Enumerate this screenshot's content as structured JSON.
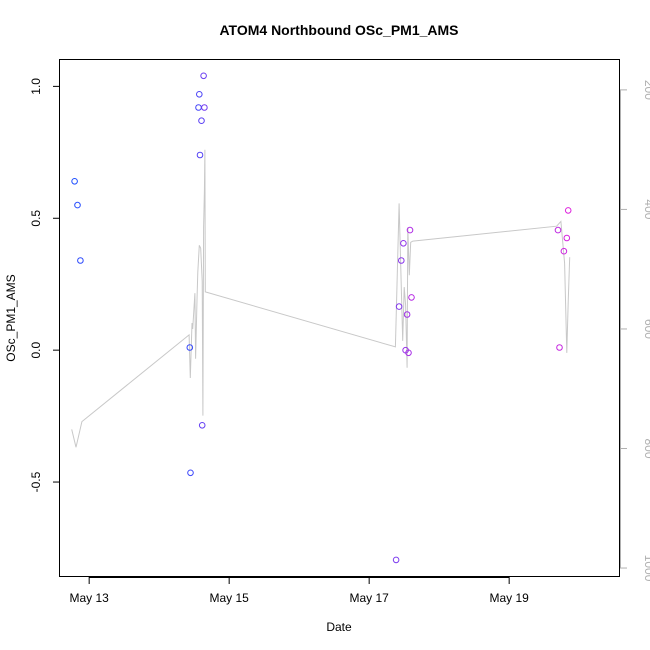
{
  "chart_data": {
    "type": "scatter",
    "title": "ATOM4 Northbound OSc_PM1_AMS",
    "xlabel": "Date",
    "ylabel": "OSc_PM1_AMS",
    "xlim": [
      "2016-05-12 14:00",
      "2016-05-20 14:00"
    ],
    "ylim": [
      -0.86,
      1.1
    ],
    "y2lim": [
      1015,
      150
    ],
    "grid": false,
    "x_ticks": [
      {
        "value": "2016-05-13 00:00",
        "label": "May 13"
      },
      {
        "value": "2016-05-15 00:00",
        "label": "May 15"
      },
      {
        "value": "2016-05-17 00:00",
        "label": "May 17"
      },
      {
        "value": "2016-05-19 00:00",
        "label": "May 19"
      }
    ],
    "y_ticks": [
      {
        "value": -0.5,
        "label": "-0.5"
      },
      {
        "value": 0.0,
        "label": "0.0"
      },
      {
        "value": 0.5,
        "label": "0.5"
      },
      {
        "value": 1.0,
        "label": "1.0"
      }
    ],
    "y2_ticks": [
      {
        "value": 200,
        "label": "200"
      },
      {
        "value": 400,
        "label": "400"
      },
      {
        "value": 600,
        "label": "600"
      },
      {
        "value": 800,
        "label": "800"
      },
      {
        "value": 1000,
        "label": "1000"
      }
    ],
    "colors": {
      "line": "#c8c8c8",
      "right_axis": "#b0b0b0",
      "gradient_start": "#2050ff",
      "gradient_end": "#dd22dd"
    },
    "points": [
      {
        "x": "2016-05-12 19:00",
        "y": 0.64
      },
      {
        "x": "2016-05-12 20:00",
        "y": 0.55
      },
      {
        "x": "2016-05-12 21:00",
        "y": 0.34
      },
      {
        "x": "2016-05-14 10:30",
        "y": 0.01
      },
      {
        "x": "2016-05-14 10:45",
        "y": -0.465
      },
      {
        "x": "2016-05-14 13:30",
        "y": 0.92
      },
      {
        "x": "2016-05-14 13:45",
        "y": 0.97
      },
      {
        "x": "2016-05-14 14:00",
        "y": 0.74
      },
      {
        "x": "2016-05-14 14:30",
        "y": 0.87
      },
      {
        "x": "2016-05-14 14:45",
        "y": -0.285
      },
      {
        "x": "2016-05-14 15:15",
        "y": 1.04
      },
      {
        "x": "2016-05-14 15:30",
        "y": 0.92
      },
      {
        "x": "2016-05-17 09:15",
        "y": -0.795
      },
      {
        "x": "2016-05-17 10:15",
        "y": 0.165
      },
      {
        "x": "2016-05-17 11:00",
        "y": 0.34
      },
      {
        "x": "2016-05-17 11:45",
        "y": 0.405
      },
      {
        "x": "2016-05-17 12:30",
        "y": 0.0
      },
      {
        "x": "2016-05-17 13:00",
        "y": 0.135
      },
      {
        "x": "2016-05-17 13:30",
        "y": -0.01
      },
      {
        "x": "2016-05-17 14:00",
        "y": 0.455
      },
      {
        "x": "2016-05-17 14:30",
        "y": 0.2
      },
      {
        "x": "2016-05-19 16:45",
        "y": 0.455
      },
      {
        "x": "2016-05-19 17:15",
        "y": 0.01
      },
      {
        "x": "2016-05-19 18:45",
        "y": 0.375
      },
      {
        "x": "2016-05-19 19:45",
        "y": 0.425
      },
      {
        "x": "2016-05-19 20:15",
        "y": 0.53
      }
    ],
    "line_y2": [
      {
        "x": "2016-05-12 18:00",
        "y2": 768
      },
      {
        "x": "2016-05-12 19:30",
        "y2": 798
      },
      {
        "x": "2016-05-12 21:30",
        "y2": 755
      },
      {
        "x": "2016-05-14 10:15",
        "y2": 610
      },
      {
        "x": "2016-05-14 10:40",
        "y": 0,
        "y2": 682
      },
      {
        "x": "2016-05-14 11:15",
        "y2": 590
      },
      {
        "x": "2016-05-14 11:30",
        "y2": 600
      },
      {
        "x": "2016-05-14 12:15",
        "y2": 540
      },
      {
        "x": "2016-05-14 12:30",
        "y2": 650
      },
      {
        "x": "2016-05-14 13:00",
        "y2": 545
      },
      {
        "x": "2016-05-14 13:15",
        "y2": 505
      },
      {
        "x": "2016-05-14 13:45",
        "y2": 460
      },
      {
        "x": "2016-05-14 14:15",
        "y2": 465
      },
      {
        "x": "2016-05-14 14:45",
        "y2": 520
      },
      {
        "x": "2016-05-14 15:00",
        "y2": 745
      },
      {
        "x": "2016-05-14 15:15",
        "y2": 430
      },
      {
        "x": "2016-05-14 15:30",
        "y2": 370
      },
      {
        "x": "2016-05-14 15:40",
        "y2": 300
      },
      {
        "x": "2016-05-14 15:50",
        "y2": 538
      },
      {
        "x": "2016-05-17 09:00",
        "y2": 630
      },
      {
        "x": "2016-05-17 10:15",
        "y2": 390
      },
      {
        "x": "2016-05-17 10:45",
        "y2": 480
      },
      {
        "x": "2016-05-17 11:30",
        "y2": 620
      },
      {
        "x": "2016-05-17 12:00",
        "y2": 530
      },
      {
        "x": "2016-05-17 12:30",
        "y2": 560
      },
      {
        "x": "2016-05-17 13:00",
        "y2": 665
      },
      {
        "x": "2016-05-17 13:15",
        "y2": 430
      },
      {
        "x": "2016-05-17 13:45",
        "y2": 510
      },
      {
        "x": "2016-05-17 14:15",
        "y2": 455
      },
      {
        "x": "2016-05-17 15:00",
        "y2": 453
      },
      {
        "x": "2016-05-19 16:15",
        "y2": 428
      },
      {
        "x": "2016-05-19 17:45",
        "y2": 420
      },
      {
        "x": "2016-05-19 19:00",
        "y2": 490
      },
      {
        "x": "2016-05-19 19:45",
        "y2": 640
      },
      {
        "x": "2016-05-19 20:15",
        "y2": 555
      },
      {
        "x": "2016-05-19 20:45",
        "y2": 480
      }
    ]
  }
}
